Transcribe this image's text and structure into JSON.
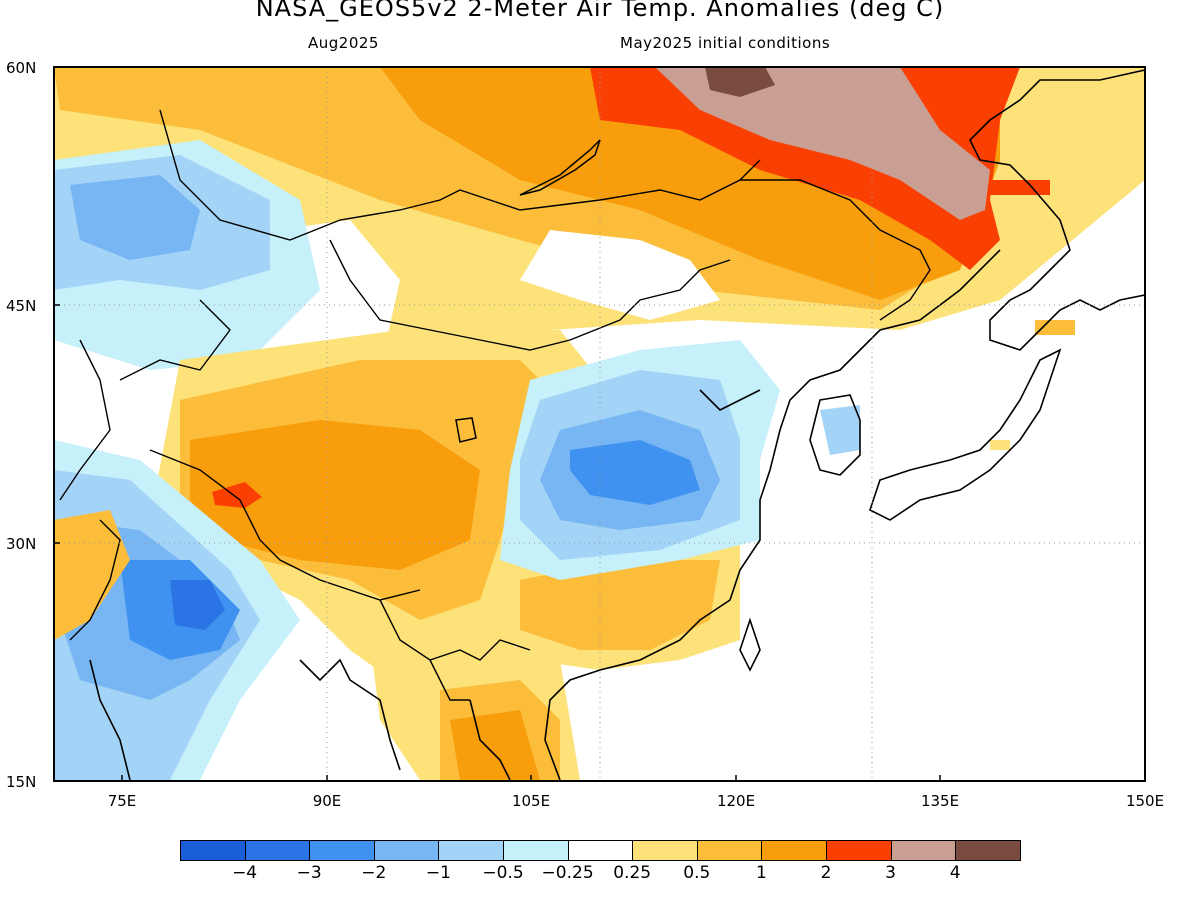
{
  "title": "NASA_GEOS5v2 2-Meter Air Temp. Anomalies (deg C)",
  "valid_month": "Aug2025",
  "init_text": "May2025 initial conditions",
  "lat_labels": [
    "60N",
    "45N",
    "30N",
    "15N"
  ],
  "lon_labels": [
    "75E",
    "90E",
    "105E",
    "120E",
    "135E",
    "150E"
  ],
  "colorbar": {
    "colors": [
      "#1a5fd8",
      "#2b74e6",
      "#3f92f0",
      "#77b6f3",
      "#a3d3f6",
      "#c6f0fa",
      "#ffffff",
      "#fde27a",
      "#fbbd3a",
      "#f89d0c",
      "#fa3f02",
      "#c89f92",
      "#7a4c40"
    ],
    "labels": [
      "-4",
      "-3",
      "-2",
      "-1",
      "-0.5",
      "-0.25",
      "0.25",
      "0.5",
      "1",
      "2",
      "3",
      "4"
    ]
  },
  "map": {
    "lon_range": [
      70,
      150
    ],
    "lat_range": [
      15,
      60
    ],
    "gridline_style": "dotted"
  }
}
